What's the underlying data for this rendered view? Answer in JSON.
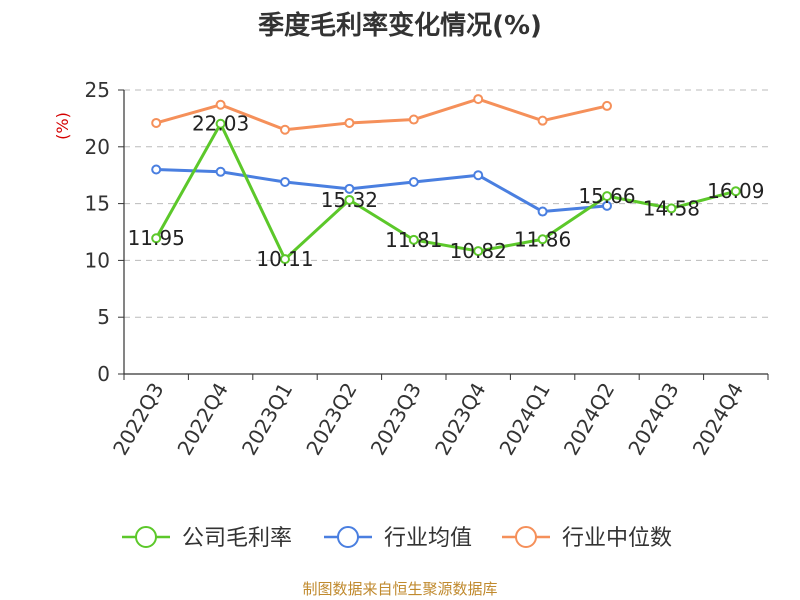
{
  "chart_data": {
    "type": "line",
    "title": "季度毛利率变化情况(%)",
    "unit": "(%)",
    "categories": [
      "2022Q3",
      "2022Q4",
      "2023Q1",
      "2023Q2",
      "2023Q3",
      "2023Q4",
      "2024Q1",
      "2024Q2",
      "2024Q3",
      "2024Q4"
    ],
    "ylim": [
      0,
      25
    ],
    "yticks": [
      0,
      5,
      10,
      15,
      20,
      25
    ],
    "grid": true,
    "legend_position": "bottom",
    "series": [
      {
        "name": "公司毛利率",
        "color": "#5cc82a",
        "labels": true,
        "values": [
          11.95,
          22.03,
          10.11,
          15.32,
          11.81,
          10.82,
          11.86,
          15.66,
          14.58,
          16.09
        ],
        "label_text": [
          "11.95",
          "22.03",
          "10.11",
          "15.32",
          "11.81",
          "10.82",
          "11.86",
          "15.66",
          "14.58",
          "16.09"
        ]
      },
      {
        "name": "行业均值",
        "color": "#4a7fe0",
        "labels": false,
        "values": [
          18.0,
          17.8,
          16.9,
          16.3,
          16.9,
          17.5,
          14.3,
          14.8,
          null,
          null
        ]
      },
      {
        "name": "行业中位数",
        "color": "#f5905a",
        "labels": false,
        "values": [
          22.1,
          23.7,
          21.5,
          22.1,
          22.4,
          24.2,
          22.3,
          23.6,
          null,
          null
        ]
      }
    ],
    "source": "制图数据来自恒生聚源数据库"
  }
}
